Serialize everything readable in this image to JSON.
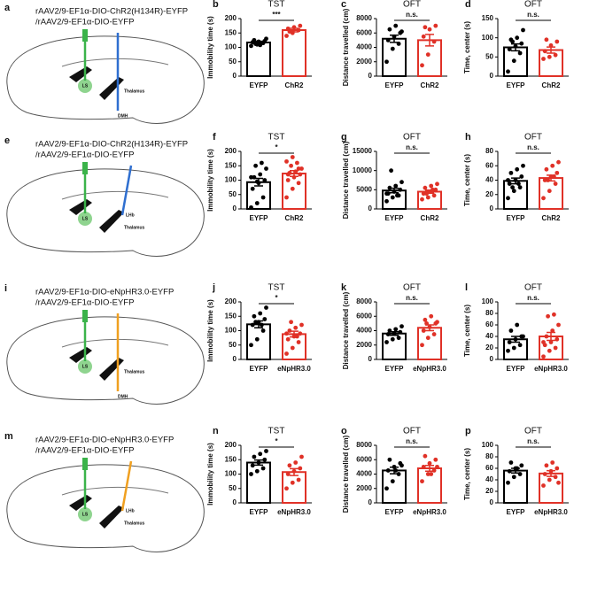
{
  "diagrams": [
    {
      "letter": "a",
      "lines": [
        "rAAV2/9-EF1α-DIO-ChR2(H134R)-EYFP",
        "/rAAV2/9-EF1α-DIO-EYFP"
      ],
      "labels": [
        "LS",
        "Thalamus",
        "DMH"
      ],
      "fiber_colors": [
        "#3bb34a",
        "#2f6fd0"
      ]
    },
    {
      "letter": "e",
      "lines": [
        "rAAV2/9-EF1α-DIO-ChR2(H134R)-EYFP",
        "/rAAV2/9-EF1α-DIO-EYFP"
      ],
      "labels": [
        "LS",
        "LHb",
        "Thalamus"
      ],
      "fiber_colors": [
        "#3bb34a",
        "#2f6fd0"
      ]
    },
    {
      "letter": "i",
      "lines": [
        "rAAV2/9-EF1α-DIO-eNpHR3.0-EYFP",
        "/rAAV2/9-EF1α-DIO-EYFP"
      ],
      "labels": [
        "LS",
        "Thalamus",
        "DMH"
      ],
      "fiber_colors": [
        "#3bb34a",
        "#f0a020"
      ]
    },
    {
      "letter": "m",
      "lines": [
        "rAAV2/9-EF1α-DIO-eNpHR3.0-EYFP",
        "/rAAV2/9-EF1α-DIO-EYFP"
      ],
      "labels": [
        "LS",
        "LHb",
        "Thalamus"
      ],
      "fiber_colors": [
        "#3bb34a",
        "#f0a020"
      ]
    }
  ],
  "chart_data": [
    {
      "type": "bar",
      "letter": "b",
      "title": "TST",
      "ylabel": "Immobility time (s)",
      "categories": [
        "EYFP",
        "ChR2"
      ],
      "colors": [
        "#000000",
        "#e03127"
      ],
      "values": [
        117,
        160
      ],
      "errors": [
        4,
        6
      ],
      "points": [
        [
          105,
          110,
          115,
          118,
          120,
          122,
          125,
          108,
          130,
          112
        ],
        [
          140,
          150,
          160,
          165,
          170,
          175,
          155
        ]
      ],
      "ylim": [
        0,
        200
      ],
      "yticks": [
        0,
        50,
        100,
        150,
        200
      ],
      "sig": "***"
    },
    {
      "type": "bar",
      "letter": "c",
      "title": "OFT",
      "ylabel": "Distance travelled (cm)",
      "categories": [
        "EYFP",
        "ChR2"
      ],
      "colors": [
        "#000000",
        "#e03127"
      ],
      "values": [
        5200,
        5000
      ],
      "errors": [
        500,
        800
      ],
      "points": [
        [
          2000,
          3800,
          4500,
          5000,
          5500,
          6000,
          6500,
          7000,
          6200
        ],
        [
          1500,
          3000,
          4800,
          5500,
          6500,
          7000,
          6800
        ]
      ],
      "ylim": [
        0,
        8000
      ],
      "yticks": [
        0,
        2000,
        4000,
        6000,
        8000
      ],
      "sig": "n.s."
    },
    {
      "type": "bar",
      "letter": "d",
      "title": "OFT",
      "ylabel": "Time, center (s)",
      "categories": [
        "EYFP",
        "ChR2"
      ],
      "colors": [
        "#000000",
        "#e03127"
      ],
      "values": [
        75,
        68
      ],
      "errors": [
        9,
        8
      ],
      "points": [
        [
          12,
          40,
          60,
          70,
          78,
          85,
          95,
          100,
          120,
          90
        ],
        [
          45,
          50,
          55,
          65,
          80,
          90,
          95
        ]
      ],
      "ylim": [
        0,
        150
      ],
      "yticks": [
        0,
        50,
        100,
        150
      ],
      "sig": "n.s."
    },
    {
      "type": "bar",
      "letter": "f",
      "title": "TST",
      "ylabel": "Immobility time (s)",
      "categories": [
        "EYFP",
        "ChR2"
      ],
      "colors": [
        "#000000",
        "#e03127"
      ],
      "values": [
        93,
        123
      ],
      "errors": [
        13,
        10
      ],
      "points": [
        [
          5,
          20,
          40,
          70,
          90,
          100,
          110,
          120,
          140,
          150,
          160,
          110,
          95
        ],
        [
          40,
          70,
          90,
          100,
          110,
          120,
          125,
          130,
          140,
          150,
          160,
          165,
          180,
          140,
          120
        ]
      ],
      "ylim": [
        0,
        200
      ],
      "yticks": [
        0,
        50,
        100,
        150,
        200
      ],
      "sig": "*"
    },
    {
      "type": "bar",
      "letter": "g",
      "title": "OFT",
      "ylabel": "Distance travelled (cm)",
      "categories": [
        "EYFP",
        "ChR2"
      ],
      "colors": [
        "#000000",
        "#e03127"
      ],
      "values": [
        4800,
        4500
      ],
      "errors": [
        600,
        400
      ],
      "points": [
        [
          2000,
          3000,
          3500,
          4000,
          4500,
          5000,
          5500,
          6000,
          7000,
          10000,
          3500,
          4000
        ],
        [
          2500,
          3000,
          3500,
          4000,
          4500,
          5000,
          5500,
          6000,
          6500,
          4000,
          5000
        ]
      ],
      "ylim": [
        0,
        15000
      ],
      "yticks": [
        0,
        5000,
        10000,
        15000
      ],
      "sig": "n.s."
    },
    {
      "type": "bar",
      "letter": "h",
      "title": "OFT",
      "ylabel": "Time, center (s)",
      "categories": [
        "EYFP",
        "ChR2"
      ],
      "colors": [
        "#000000",
        "#e03127"
      ],
      "values": [
        39,
        43
      ],
      "errors": [
        4,
        4
      ],
      "points": [
        [
          15,
          25,
          30,
          35,
          40,
          45,
          50,
          55,
          60,
          30,
          35,
          40
        ],
        [
          15,
          25,
          35,
          40,
          45,
          50,
          55,
          60,
          65,
          40,
          45
        ]
      ],
      "ylim": [
        0,
        80
      ],
      "yticks": [
        0,
        20,
        40,
        60,
        80
      ],
      "sig": "n.s."
    },
    {
      "type": "bar",
      "letter": "j",
      "title": "TST",
      "ylabel": "Immobility time (s)",
      "categories": [
        "EYFP",
        "eNpHR3.0"
      ],
      "colors": [
        "#000000",
        "#e03127"
      ],
      "values": [
        122,
        88
      ],
      "errors": [
        12,
        10
      ],
      "points": [
        [
          50,
          70,
          100,
          120,
          130,
          140,
          150,
          160,
          180,
          130,
          120
        ],
        [
          20,
          40,
          60,
          70,
          80,
          90,
          100,
          110,
          120,
          130,
          80,
          90
        ]
      ],
      "ylim": [
        0,
        200
      ],
      "yticks": [
        0,
        50,
        100,
        150,
        200
      ],
      "sig": "*"
    },
    {
      "type": "bar",
      "letter": "k",
      "title": "OFT",
      "ylabel": "Distance travelled (cm)",
      "categories": [
        "EYFP",
        "eNpHR3.0"
      ],
      "colors": [
        "#000000",
        "#e03127"
      ],
      "values": [
        3600,
        4400
      ],
      "errors": [
        250,
        400
      ],
      "points": [
        [
          2400,
          2800,
          3000,
          3500,
          3600,
          3800,
          4000,
          4200,
          4600
        ],
        [
          2000,
          3000,
          3500,
          4000,
          4500,
          5000,
          5500,
          6000,
          5200,
          5000
        ]
      ],
      "ylim": [
        0,
        8000
      ],
      "yticks": [
        0,
        2000,
        4000,
        6000,
        8000
      ],
      "sig": "n.s."
    },
    {
      "type": "bar",
      "letter": "l",
      "title": "OFT",
      "ylabel": "Time, center (s)",
      "categories": [
        "EYFP",
        "eNpHR3.0"
      ],
      "colors": [
        "#000000",
        "#e03127"
      ],
      "values": [
        35,
        40
      ],
      "errors": [
        5,
        7
      ],
      "points": [
        [
          15,
          20,
          25,
          30,
          35,
          40,
          50,
          60,
          40
        ],
        [
          5,
          15,
          20,
          25,
          30,
          35,
          40,
          50,
          60,
          75,
          78,
          30
        ]
      ],
      "ylim": [
        0,
        100
      ],
      "yticks": [
        0,
        20,
        40,
        60,
        80,
        100
      ],
      "sig": "n.s."
    },
    {
      "type": "bar",
      "letter": "n",
      "title": "TST",
      "ylabel": "Immobility time (s)",
      "categories": [
        "EYFP",
        "eNpHR3.0"
      ],
      "colors": [
        "#000000",
        "#e03127"
      ],
      "values": [
        140,
        107
      ],
      "errors": [
        9,
        12
      ],
      "points": [
        [
          100,
          110,
          120,
          130,
          140,
          150,
          160,
          170,
          180
        ],
        [
          50,
          70,
          80,
          100,
          110,
          120,
          130,
          140,
          160
        ]
      ],
      "ylim": [
        0,
        200
      ],
      "yticks": [
        0,
        50,
        100,
        150,
        200
      ],
      "sig": "*"
    },
    {
      "type": "bar",
      "letter": "o",
      "title": "OFT",
      "ylabel": "Distance travelled (cm)",
      "categories": [
        "EYFP",
        "eNpHR3.0"
      ],
      "colors": [
        "#000000",
        "#e03127"
      ],
      "values": [
        4500,
        4800
      ],
      "errors": [
        450,
        400
      ],
      "points": [
        [
          2000,
          3000,
          4000,
          4500,
          5000,
          5500,
          6000,
          4500,
          5200
        ],
        [
          3000,
          4000,
          4500,
          5000,
          5500,
          6000,
          6500,
          4000,
          5000
        ]
      ],
      "ylim": [
        0,
        8000
      ],
      "yticks": [
        0,
        2000,
        4000,
        6000,
        8000
      ],
      "sig": "n.s."
    },
    {
      "type": "bar",
      "letter": "p",
      "title": "OFT",
      "ylabel": "Time, center (s)",
      "categories": [
        "EYFP",
        "eNpHR3.0"
      ],
      "colors": [
        "#000000",
        "#e03127"
      ],
      "values": [
        56,
        51
      ],
      "errors": [
        4,
        5
      ],
      "points": [
        [
          35,
          45,
          50,
          55,
          60,
          65,
          70,
          60
        ],
        [
          30,
          40,
          45,
          50,
          55,
          60,
          65,
          70,
          35
        ]
      ],
      "ylim": [
        0,
        100
      ],
      "yticks": [
        0,
        20,
        40,
        60,
        80,
        100
      ],
      "sig": "n.s."
    }
  ]
}
